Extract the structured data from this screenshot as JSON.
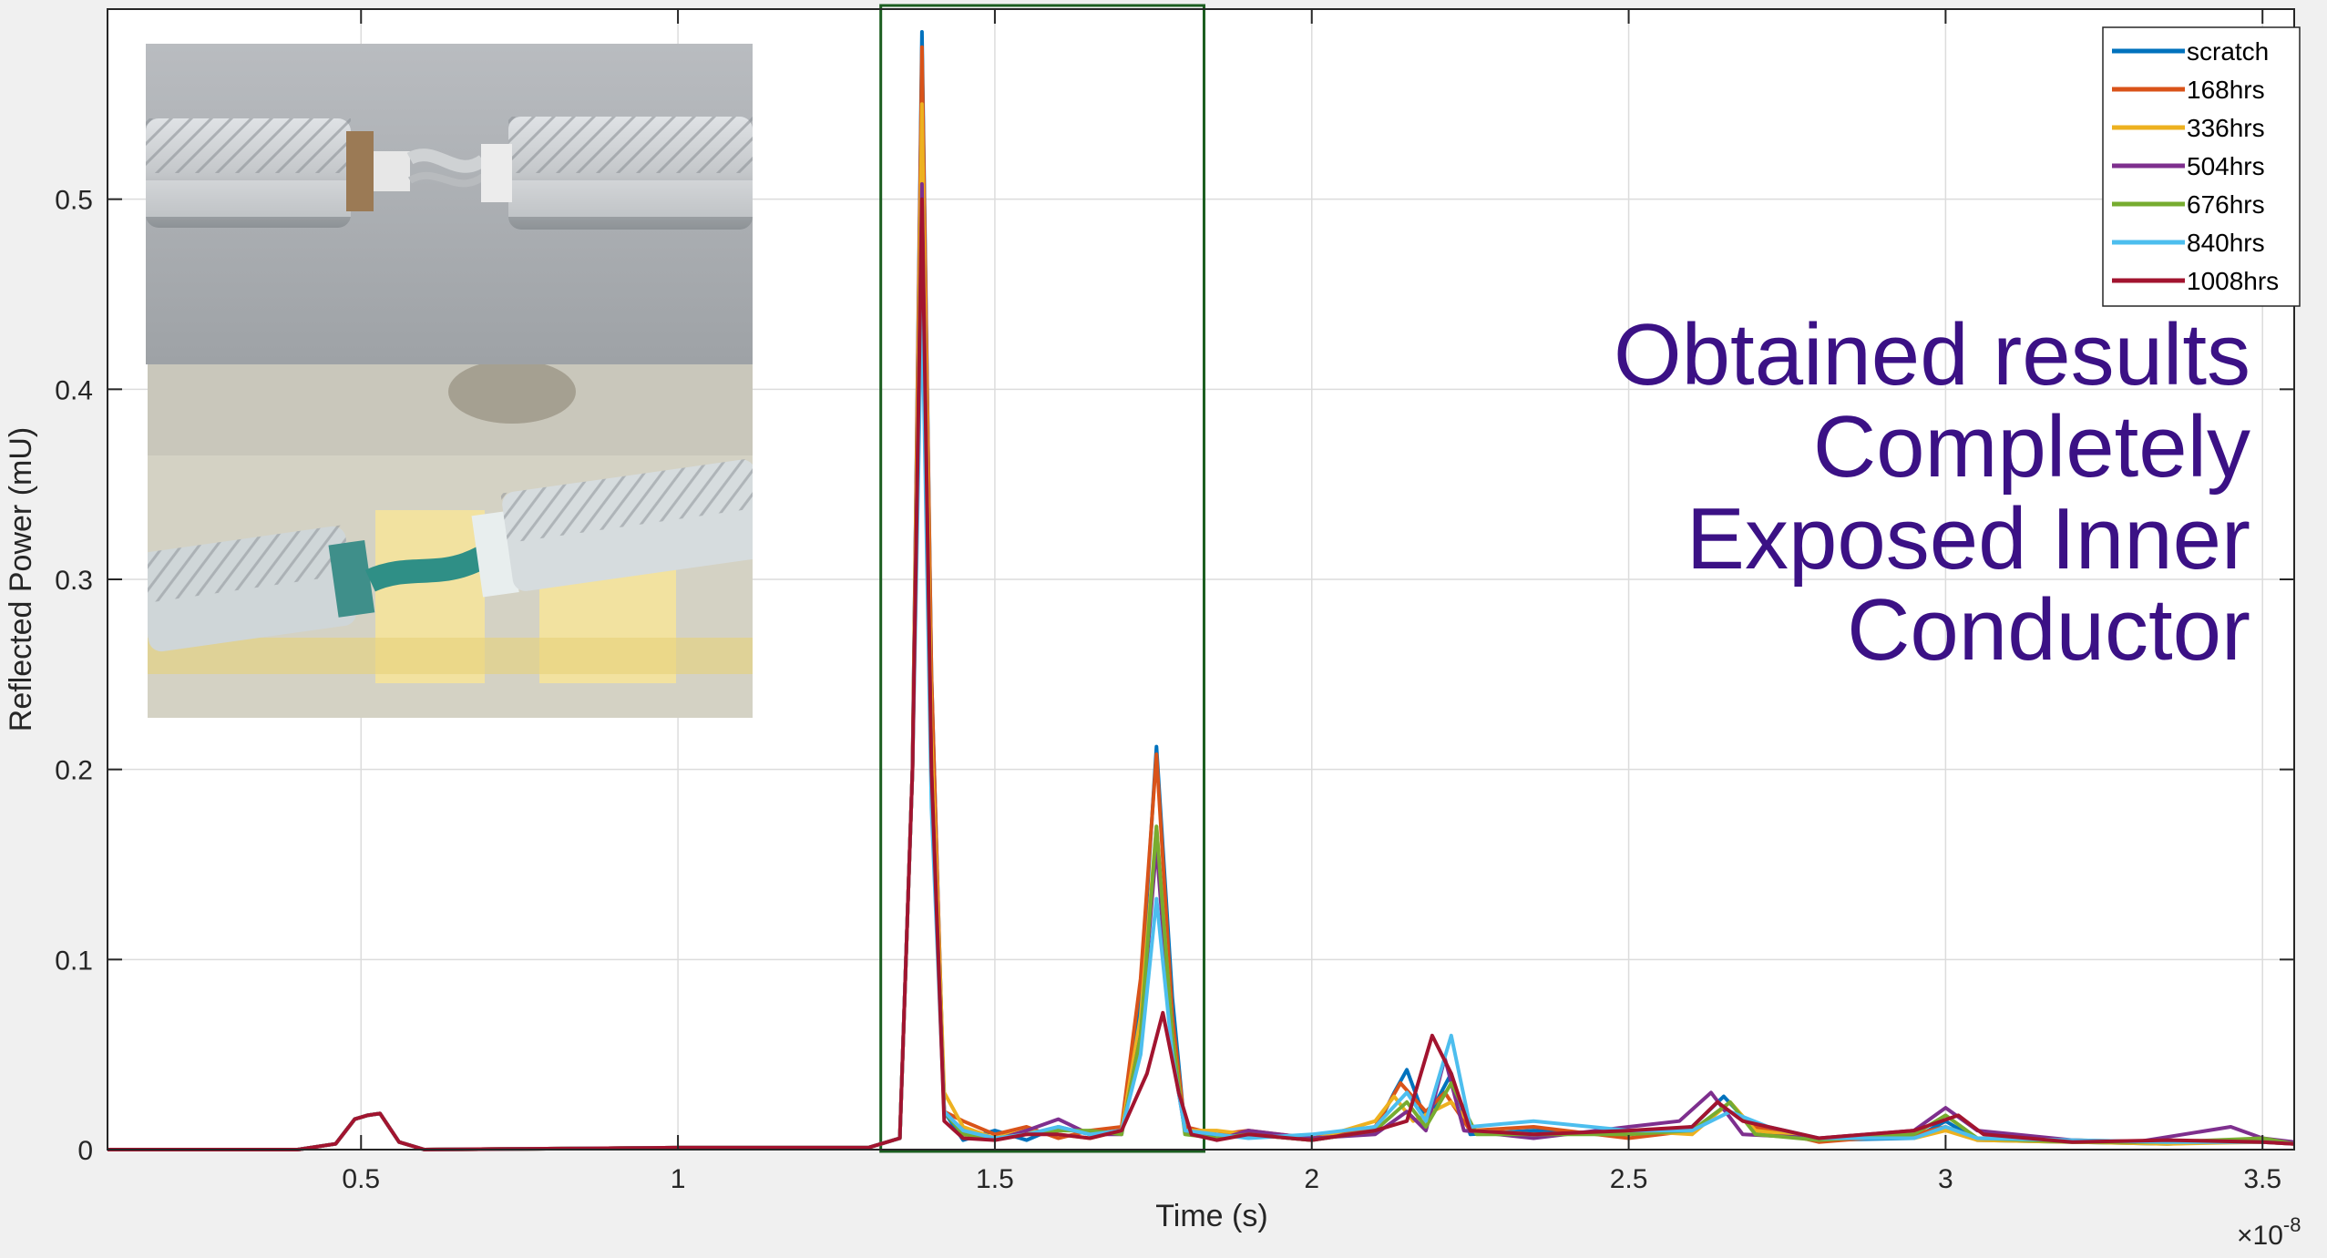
{
  "chart_data": {
    "type": "line",
    "xlabel": "Time (s)",
    "ylabel": "Reflected Power (mU)",
    "x_exponent_label": "×10",
    "x_exponent": "-8",
    "xlim": [
      0.1,
      3.55
    ],
    "ylim": [
      0,
      0.6
    ],
    "xticks": [
      "0.5",
      "1",
      "1.5",
      "2",
      "2.5",
      "3",
      "3.5"
    ],
    "xtick_values": [
      0.5,
      1,
      1.5,
      2,
      2.5,
      3,
      3.5
    ],
    "yticks": [
      "0",
      "0.1",
      "0.2",
      "0.3",
      "0.4",
      "0.5"
    ],
    "ytick_values": [
      0,
      0.1,
      0.2,
      0.3,
      0.4,
      0.5
    ],
    "grid": true,
    "legend_position": "top-right",
    "highlight_box": {
      "x": [
        1.32,
        1.83
      ]
    },
    "common_baseline": [
      [
        0.1,
        0
      ],
      [
        0.4,
        0
      ],
      [
        0.46,
        0.003
      ],
      [
        0.49,
        0.016
      ],
      [
        0.51,
        0.018
      ],
      [
        0.53,
        0.019
      ],
      [
        0.56,
        0.004
      ],
      [
        0.6,
        0
      ],
      [
        1.0,
        0.001
      ],
      [
        1.3,
        0.001
      ],
      [
        1.35,
        0.006
      ]
    ],
    "series": [
      {
        "name": "scratch",
        "color": "#0072bd",
        "points": [
          [
            1.37,
            0.2
          ],
          [
            1.385,
            0.588
          ],
          [
            1.4,
            0.25
          ],
          [
            1.42,
            0.02
          ],
          [
            1.45,
            0.005
          ],
          [
            1.5,
            0.01
          ],
          [
            1.55,
            0.005
          ],
          [
            1.6,
            0.012
          ],
          [
            1.65,
            0.008
          ],
          [
            1.7,
            0.01
          ],
          [
            1.73,
            0.08
          ],
          [
            1.755,
            0.212
          ],
          [
            1.78,
            0.08
          ],
          [
            1.8,
            0.01
          ],
          [
            1.85,
            0.006
          ],
          [
            1.9,
            0.008
          ],
          [
            2.0,
            0.005
          ],
          [
            2.1,
            0.01
          ],
          [
            2.13,
            0.03
          ],
          [
            2.15,
            0.042
          ],
          [
            2.18,
            0.015
          ],
          [
            2.22,
            0.04
          ],
          [
            2.25,
            0.008
          ],
          [
            2.35,
            0.01
          ],
          [
            2.5,
            0.008
          ],
          [
            2.6,
            0.012
          ],
          [
            2.65,
            0.028
          ],
          [
            2.7,
            0.01
          ],
          [
            2.8,
            0.005
          ],
          [
            2.95,
            0.006
          ],
          [
            3.0,
            0.015
          ],
          [
            3.05,
            0.005
          ],
          [
            3.2,
            0.004
          ],
          [
            3.35,
            0.003
          ],
          [
            3.5,
            0.005
          ],
          [
            3.55,
            0.003
          ]
        ]
      },
      {
        "name": "168hrs",
        "color": "#d95319",
        "points": [
          [
            1.37,
            0.2
          ],
          [
            1.385,
            0.58
          ],
          [
            1.4,
            0.25
          ],
          [
            1.42,
            0.02
          ],
          [
            1.45,
            0.015
          ],
          [
            1.5,
            0.008
          ],
          [
            1.55,
            0.012
          ],
          [
            1.6,
            0.006
          ],
          [
            1.65,
            0.01
          ],
          [
            1.7,
            0.012
          ],
          [
            1.73,
            0.09
          ],
          [
            1.755,
            0.208
          ],
          [
            1.78,
            0.07
          ],
          [
            1.8,
            0.012
          ],
          [
            1.85,
            0.008
          ],
          [
            1.9,
            0.01
          ],
          [
            2.0,
            0.006
          ],
          [
            2.1,
            0.012
          ],
          [
            2.14,
            0.035
          ],
          [
            2.18,
            0.02
          ],
          [
            2.21,
            0.03
          ],
          [
            2.25,
            0.01
          ],
          [
            2.35,
            0.012
          ],
          [
            2.5,
            0.006
          ],
          [
            2.6,
            0.01
          ],
          [
            2.65,
            0.022
          ],
          [
            2.7,
            0.012
          ],
          [
            2.8,
            0.004
          ],
          [
            2.95,
            0.008
          ],
          [
            3.0,
            0.012
          ],
          [
            3.05,
            0.006
          ],
          [
            3.2,
            0.005
          ],
          [
            3.35,
            0.004
          ],
          [
            3.5,
            0.004
          ],
          [
            3.55,
            0.003
          ]
        ]
      },
      {
        "name": "336hrs",
        "color": "#edb120",
        "points": [
          [
            1.37,
            0.2
          ],
          [
            1.385,
            0.55
          ],
          [
            1.4,
            0.22
          ],
          [
            1.42,
            0.03
          ],
          [
            1.45,
            0.012
          ],
          [
            1.5,
            0.006
          ],
          [
            1.55,
            0.01
          ],
          [
            1.6,
            0.008
          ],
          [
            1.65,
            0.006
          ],
          [
            1.7,
            0.01
          ],
          [
            1.73,
            0.07
          ],
          [
            1.755,
            0.17
          ],
          [
            1.78,
            0.06
          ],
          [
            1.8,
            0.01
          ],
          [
            1.85,
            0.01
          ],
          [
            1.9,
            0.008
          ],
          [
            2.0,
            0.005
          ],
          [
            2.1,
            0.015
          ],
          [
            2.13,
            0.028
          ],
          [
            2.16,
            0.015
          ],
          [
            2.22,
            0.025
          ],
          [
            2.26,
            0.01
          ],
          [
            2.35,
            0.008
          ],
          [
            2.5,
            0.01
          ],
          [
            2.6,
            0.008
          ],
          [
            2.66,
            0.025
          ],
          [
            2.7,
            0.01
          ],
          [
            2.8,
            0.006
          ],
          [
            2.95,
            0.006
          ],
          [
            3.0,
            0.01
          ],
          [
            3.05,
            0.005
          ],
          [
            3.2,
            0.004
          ],
          [
            3.35,
            0.003
          ],
          [
            3.5,
            0.004
          ],
          [
            3.55,
            0.003
          ]
        ]
      },
      {
        "name": "504hrs",
        "color": "#7e2f8e",
        "points": [
          [
            1.37,
            0.2
          ],
          [
            1.385,
            0.508
          ],
          [
            1.4,
            0.2
          ],
          [
            1.42,
            0.02
          ],
          [
            1.45,
            0.01
          ],
          [
            1.5,
            0.005
          ],
          [
            1.55,
            0.01
          ],
          [
            1.6,
            0.016
          ],
          [
            1.65,
            0.008
          ],
          [
            1.7,
            0.008
          ],
          [
            1.73,
            0.06
          ],
          [
            1.755,
            0.16
          ],
          [
            1.78,
            0.05
          ],
          [
            1.8,
            0.01
          ],
          [
            1.85,
            0.005
          ],
          [
            1.9,
            0.01
          ],
          [
            2.0,
            0.006
          ],
          [
            2.1,
            0.008
          ],
          [
            2.15,
            0.02
          ],
          [
            2.18,
            0.01
          ],
          [
            2.21,
            0.048
          ],
          [
            2.24,
            0.01
          ],
          [
            2.35,
            0.006
          ],
          [
            2.5,
            0.012
          ],
          [
            2.58,
            0.015
          ],
          [
            2.63,
            0.03
          ],
          [
            2.68,
            0.008
          ],
          [
            2.8,
            0.006
          ],
          [
            2.95,
            0.01
          ],
          [
            3.0,
            0.022
          ],
          [
            3.05,
            0.01
          ],
          [
            3.2,
            0.005
          ],
          [
            3.3,
            0.004
          ],
          [
            3.45,
            0.012
          ],
          [
            3.5,
            0.006
          ],
          [
            3.55,
            0.004
          ]
        ]
      },
      {
        "name": "676hrs",
        "color": "#77ac30",
        "points": [
          [
            1.37,
            0.2
          ],
          [
            1.385,
            0.47
          ],
          [
            1.4,
            0.19
          ],
          [
            1.42,
            0.02
          ],
          [
            1.45,
            0.008
          ],
          [
            1.5,
            0.006
          ],
          [
            1.55,
            0.008
          ],
          [
            1.6,
            0.01
          ],
          [
            1.65,
            0.01
          ],
          [
            1.7,
            0.008
          ],
          [
            1.73,
            0.06
          ],
          [
            1.755,
            0.17
          ],
          [
            1.78,
            0.06
          ],
          [
            1.8,
            0.008
          ],
          [
            1.85,
            0.006
          ],
          [
            1.9,
            0.008
          ],
          [
            2.0,
            0.005
          ],
          [
            2.1,
            0.01
          ],
          [
            2.15,
            0.025
          ],
          [
            2.18,
            0.012
          ],
          [
            2.22,
            0.035
          ],
          [
            2.26,
            0.008
          ],
          [
            2.35,
            0.008
          ],
          [
            2.5,
            0.008
          ],
          [
            2.6,
            0.01
          ],
          [
            2.66,
            0.025
          ],
          [
            2.7,
            0.008
          ],
          [
            2.8,
            0.005
          ],
          [
            2.95,
            0.008
          ],
          [
            3.0,
            0.018
          ],
          [
            3.05,
            0.006
          ],
          [
            3.2,
            0.004
          ],
          [
            3.35,
            0.004
          ],
          [
            3.5,
            0.006
          ],
          [
            3.55,
            0.003
          ]
        ]
      },
      {
        "name": "840hrs",
        "color": "#4dbeee",
        "points": [
          [
            1.37,
            0.2
          ],
          [
            1.385,
            0.45
          ],
          [
            1.4,
            0.18
          ],
          [
            1.42,
            0.02
          ],
          [
            1.45,
            0.01
          ],
          [
            1.5,
            0.006
          ],
          [
            1.55,
            0.008
          ],
          [
            1.6,
            0.012
          ],
          [
            1.65,
            0.008
          ],
          [
            1.7,
            0.01
          ],
          [
            1.73,
            0.05
          ],
          [
            1.755,
            0.132
          ],
          [
            1.78,
            0.05
          ],
          [
            1.8,
            0.01
          ],
          [
            1.85,
            0.008
          ],
          [
            1.9,
            0.006
          ],
          [
            2.0,
            0.008
          ],
          [
            2.1,
            0.012
          ],
          [
            2.15,
            0.03
          ],
          [
            2.18,
            0.015
          ],
          [
            2.22,
            0.06
          ],
          [
            2.25,
            0.012
          ],
          [
            2.35,
            0.015
          ],
          [
            2.5,
            0.01
          ],
          [
            2.6,
            0.01
          ],
          [
            2.66,
            0.02
          ],
          [
            2.72,
            0.012
          ],
          [
            2.8,
            0.006
          ],
          [
            2.95,
            0.006
          ],
          [
            3.0,
            0.012
          ],
          [
            3.05,
            0.006
          ],
          [
            3.2,
            0.005
          ],
          [
            3.35,
            0.004
          ],
          [
            3.5,
            0.004
          ],
          [
            3.55,
            0.003
          ]
        ]
      },
      {
        "name": "1008hrs",
        "color": "#a2142f",
        "points": [
          [
            1.37,
            0.2
          ],
          [
            1.385,
            0.5
          ],
          [
            1.4,
            0.2
          ],
          [
            1.42,
            0.015
          ],
          [
            1.45,
            0.006
          ],
          [
            1.5,
            0.005
          ],
          [
            1.55,
            0.008
          ],
          [
            1.6,
            0.008
          ],
          [
            1.65,
            0.006
          ],
          [
            1.7,
            0.01
          ],
          [
            1.74,
            0.04
          ],
          [
            1.765,
            0.072
          ],
          [
            1.79,
            0.03
          ],
          [
            1.81,
            0.008
          ],
          [
            1.85,
            0.005
          ],
          [
            1.9,
            0.008
          ],
          [
            2.0,
            0.005
          ],
          [
            2.1,
            0.01
          ],
          [
            2.15,
            0.015
          ],
          [
            2.19,
            0.06
          ],
          [
            2.22,
            0.04
          ],
          [
            2.25,
            0.01
          ],
          [
            2.35,
            0.008
          ],
          [
            2.5,
            0.01
          ],
          [
            2.6,
            0.012
          ],
          [
            2.64,
            0.025
          ],
          [
            2.68,
            0.015
          ],
          [
            2.8,
            0.006
          ],
          [
            2.95,
            0.01
          ],
          [
            3.02,
            0.018
          ],
          [
            3.06,
            0.008
          ],
          [
            3.2,
            0.004
          ],
          [
            3.35,
            0.005
          ],
          [
            3.5,
            0.004
          ],
          [
            3.55,
            0.003
          ]
        ]
      }
    ]
  },
  "annotation": {
    "lines": [
      "Obtained results",
      "Completely",
      "Exposed Inner",
      "Conductor"
    ],
    "color": "#3b1185"
  },
  "photos": {
    "top": {
      "subject": "coaxial-cable-with-scratch-photo"
    },
    "bottom": {
      "subject": "corroded-coaxial-cable-photo"
    }
  }
}
